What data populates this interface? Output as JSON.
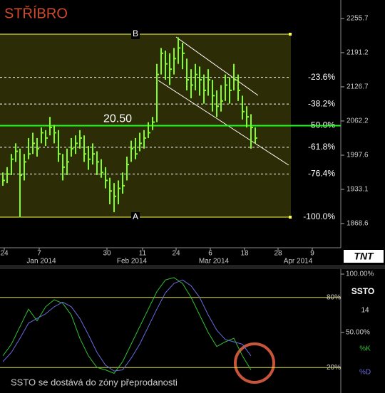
{
  "chart_data": [
    {
      "type": "ohlc",
      "title": "STŘÍBRO",
      "ylim": [
        1822.9,
        2290.6
      ],
      "yticks": [
        2255.7,
        2191.2,
        2126.7,
        2062.2,
        1997.6,
        1933.1,
        1868.6
      ],
      "x_labels": [
        "24",
        "7",
        "30",
        "11",
        "24",
        "6",
        "18",
        "28",
        "9"
      ],
      "month_labels": [
        "Jan 2014",
        "Feb 2014",
        "Mar 2014",
        "Apr 2014"
      ],
      "color": "#80ff20",
      "high": [
        1965,
        1975,
        2000,
        2020,
        2010,
        2000,
        2030,
        2040,
        2030,
        2050,
        2045,
        2070,
        2055,
        2045,
        2000,
        2010,
        2030,
        2035,
        2045,
        2035,
        2015,
        2020,
        2005,
        1990,
        1975,
        1955,
        1945,
        1950,
        1965,
        1995,
        2025,
        2030,
        2040,
        2045,
        2060,
        2070,
        2170,
        2200,
        2195,
        2190,
        2200,
        2220,
        2210,
        2180,
        2160,
        2170,
        2165,
        2150,
        2160,
        2140,
        2120,
        2130,
        2150,
        2145,
        2170,
        2150,
        2110,
        2090,
        2075,
        2050
      ],
      "low": [
        1940,
        1945,
        1960,
        1985,
        1880,
        1950,
        1990,
        2000,
        1995,
        2020,
        2015,
        2035,
        2020,
        1985,
        1950,
        1960,
        1995,
        2000,
        2010,
        1985,
        1970,
        1980,
        1960,
        1955,
        1935,
        1905,
        1890,
        1905,
        1925,
        1950,
        1985,
        1990,
        2005,
        2010,
        2030,
        2045,
        2060,
        2150,
        2140,
        2130,
        2150,
        2170,
        2160,
        2120,
        2105,
        2120,
        2110,
        2095,
        2110,
        2080,
        2070,
        2080,
        2100,
        2095,
        2120,
        2100,
        2065,
        2050,
        2010,
        2020
      ],
      "close": [
        1950,
        1962,
        1990,
        2005,
        1960,
        1985,
        2000,
        2020,
        2010,
        2040,
        2030,
        2050,
        2040,
        2000,
        1975,
        1985,
        2010,
        2020,
        2030,
        2000,
        1990,
        2000,
        1985,
        1965,
        1950,
        1930,
        1920,
        1935,
        1940,
        1980,
        2010,
        2000,
        2020,
        2030,
        2040,
        2060,
        2150,
        2190,
        2170,
        2160,
        2180,
        2200,
        2190,
        2140,
        2130,
        2150,
        2140,
        2120,
        2140,
        2110,
        2090,
        2100,
        2130,
        2120,
        2140,
        2120,
        2080,
        2070,
        2050,
        2030
      ],
      "fib_high_label": "B",
      "fib_low_label": "A",
      "fib_levels": [
        {
          "text": "-23.6%",
          "price": 2144.6
        },
        {
          "text": "-38.2%",
          "price": 2094.2
        },
        {
          "text": "-50.0%",
          "price": 2053.4
        },
        {
          "text": "-61.8%",
          "price": 2012.6
        },
        {
          "text": "-76.4%",
          "price": 1962.2
        },
        {
          "text": "-100.0%",
          "price": 1880.7
        }
      ],
      "fib_top_price": 2226.1,
      "current_label": "20.50",
      "current_price": 2053.4
    },
    {
      "type": "line",
      "title": "SSTO",
      "period": "14",
      "annotation": "SSTO se dostává do zóny přeprodanosti",
      "ylim": [
        0,
        100
      ],
      "yticks": [
        {
          "value": 100,
          "label": "100.00%"
        },
        {
          "value": 50,
          "label": "50.00%"
        }
      ],
      "levels": [
        {
          "value": 80,
          "label": "80%"
        },
        {
          "value": 20,
          "label": "20%"
        }
      ],
      "series": [
        {
          "name": "%K",
          "color": "#30c030",
          "values": [
            30,
            40,
            55,
            70,
            60,
            72,
            78,
            75,
            65,
            45,
            30,
            20,
            18,
            15,
            25,
            40,
            55,
            70,
            85,
            95,
            97,
            92,
            80,
            65,
            50,
            38,
            42,
            45,
            30,
            18
          ]
        },
        {
          "name": "%D",
          "color": "#6a6ae0",
          "values": [
            25,
            33,
            45,
            58,
            62,
            66,
            72,
            76,
            72,
            62,
            48,
            33,
            22,
            17,
            18,
            28,
            40,
            55,
            70,
            84,
            92,
            95,
            90,
            80,
            65,
            52,
            44,
            42,
            40,
            30
          ]
        }
      ]
    }
  ]
}
